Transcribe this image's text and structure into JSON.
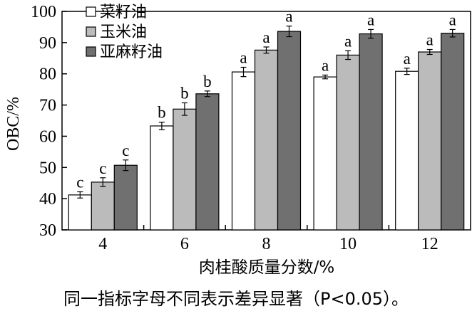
{
  "chart_data": {
    "type": "bar",
    "xlabel": "肉桂酸质量分数/%",
    "ylabel": "OBC/%",
    "ylim": [
      30,
      100
    ],
    "yticks": [
      30,
      40,
      50,
      60,
      70,
      80,
      90,
      100
    ],
    "categories": [
      "4",
      "6",
      "8",
      "10",
      "12"
    ],
    "grid": false,
    "legend_position": "top-left",
    "series": [
      {
        "name": "菜籽油",
        "color": "#ffffff",
        "values": [
          41.2,
          63.3,
          80.6,
          79.0,
          80.8
        ],
        "errors": [
          1.0,
          1.2,
          1.5,
          0.6,
          1.0
        ],
        "letters": [
          "c",
          "b",
          "a",
          "a",
          "a"
        ]
      },
      {
        "name": "玉米油",
        "color": "#bbbbbb",
        "values": [
          45.3,
          68.7,
          87.6,
          86.0,
          87.0
        ],
        "errors": [
          1.4,
          2.0,
          1.0,
          1.4,
          0.8
        ],
        "letters": [
          "c",
          "b",
          "a",
          "a",
          "a"
        ]
      },
      {
        "name": "亚麻籽油",
        "color": "#707070",
        "values": [
          50.7,
          73.6,
          93.6,
          92.8,
          93.0
        ],
        "errors": [
          1.7,
          0.9,
          1.7,
          1.4,
          1.2
        ],
        "letters": [
          "c",
          "b",
          "a",
          "a",
          "a"
        ]
      }
    ]
  },
  "footnote": "同一指标字母不同表示差异显著（P<0.05）。"
}
